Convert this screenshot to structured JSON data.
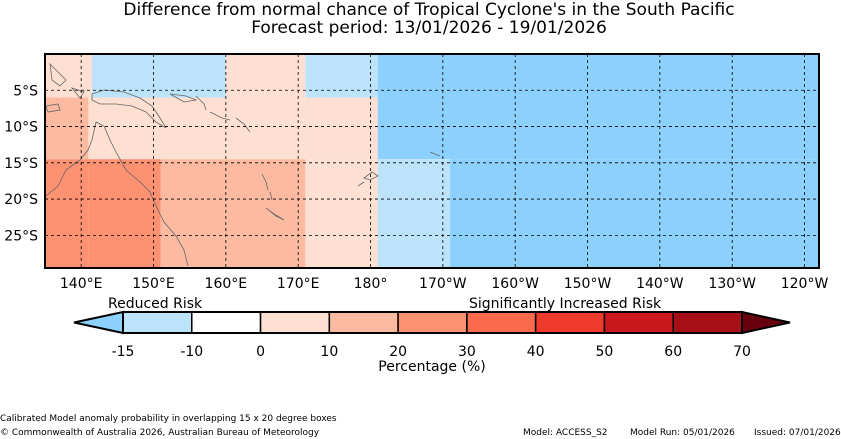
{
  "title": {
    "line1": "Difference from normal chance of Tropical Cyclone's in the South Pacific",
    "line2": "Forecast period: 13/01/2026 - 19/01/2026"
  },
  "map": {
    "lon_range": [
      135,
      242
    ],
    "lat_range": [
      -29.5,
      0
    ],
    "lon_ticks": [
      "140°E",
      "150°E",
      "160°E",
      "170°E",
      "180°",
      "170°W",
      "160°W",
      "150°W",
      "140°W",
      "130°W",
      "120°W"
    ],
    "lat_ticks": [
      "5°S",
      "10°S",
      "15°S",
      "20°S",
      "25°S"
    ],
    "cells": [
      {
        "lon0": 135,
        "lon1": 142,
        "lat0": 0,
        "lat1": -6,
        "value": 0
      },
      {
        "lon0": 141.5,
        "lon1": 160,
        "lat0": 0,
        "lat1": -6,
        "value": -12
      },
      {
        "lon0": 160,
        "lon1": 171,
        "lat0": 0,
        "lat1": -6,
        "value": 0
      },
      {
        "lon0": 171,
        "lon1": 181,
        "lat0": 0,
        "lat1": -6,
        "value": -12
      },
      {
        "lon0": 181,
        "lon1": 242,
        "lat0": 0,
        "lat1": -6,
        "value": -17
      },
      {
        "lon0": 135,
        "lon1": 141,
        "lat0": -6,
        "lat1": -14.5,
        "value": 15
      },
      {
        "lon0": 141,
        "lon1": 171,
        "lat0": -6,
        "lat1": -14.5,
        "value": 5
      },
      {
        "lon0": 171,
        "lon1": 181,
        "lat0": -6,
        "lat1": -14.5,
        "value": 0
      },
      {
        "lon0": 181,
        "lon1": 242,
        "lat0": -6,
        "lat1": -14.5,
        "value": -17
      },
      {
        "lon0": 135,
        "lon1": 141,
        "lat0": -14.5,
        "lat1": -29.5,
        "value": 25
      },
      {
        "lon0": 141,
        "lon1": 151,
        "lat0": -14.5,
        "lat1": -29.5,
        "value": 20
      },
      {
        "lon0": 151,
        "lon1": 171,
        "lat0": -14.5,
        "lat1": -29.5,
        "value": 15
      },
      {
        "lon0": 171,
        "lon1": 181,
        "lat0": -14.5,
        "lat1": -29.5,
        "value": 0
      },
      {
        "lon0": 181,
        "lon1": 191,
        "lat0": -14.5,
        "lat1": -29.5,
        "value": -12
      },
      {
        "lon0": 191,
        "lon1": 242,
        "lat0": -14.5,
        "lat1": -29.5,
        "value": -17
      }
    ]
  },
  "colorbar": {
    "low_label": "Reduced Risk",
    "high_label": "Significantly Increased Risk",
    "tick_labels": [
      "-15",
      "-10",
      "0",
      "10",
      "20",
      "30",
      "40",
      "50",
      "60",
      "70"
    ],
    "bins": [
      {
        "color": "#bde3fb"
      },
      {
        "color": "#ffffff"
      },
      {
        "color": "#fee0d2"
      },
      {
        "color": "#fcbba1"
      },
      {
        "color": "#fc9272"
      },
      {
        "color": "#fb6a4a"
      },
      {
        "color": "#ef3b2c"
      },
      {
        "color": "#cb181d"
      },
      {
        "color": "#a50f15"
      }
    ],
    "under_color": "#8cd1fd",
    "over_color": "#67000d",
    "axis_label": "Percentage (%)"
  },
  "footer": {
    "note": "Calibrated Model anomaly probability in overlapping 15 x 20 degree boxes",
    "copyright": "© Commonwealth of Australia 2026, Australian Bureau of Meteorology",
    "model": "Model: ACCESS_S2",
    "model_run": "Model Run: 05/01/2026",
    "issued": "Issued: 07/01/2026"
  }
}
